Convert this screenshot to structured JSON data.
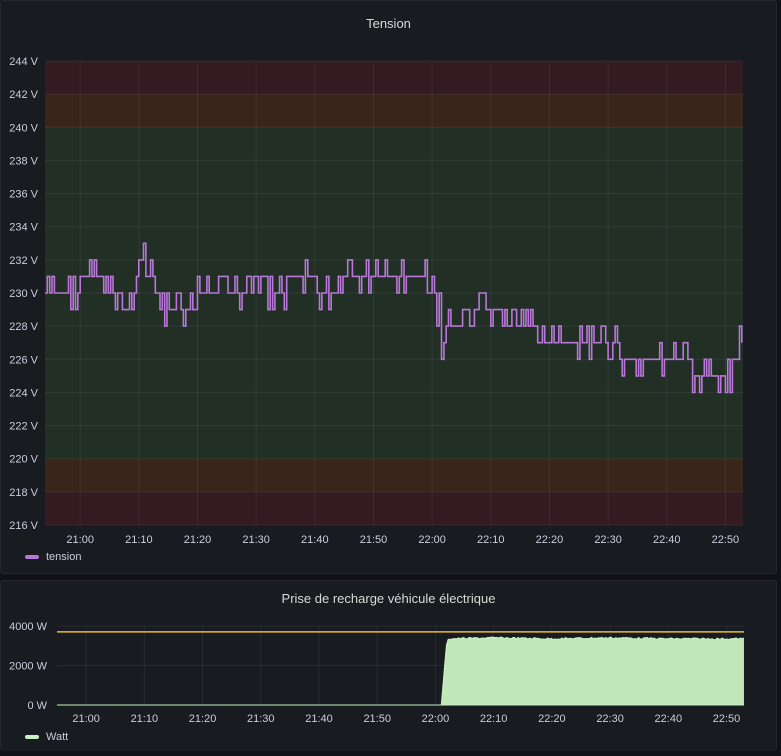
{
  "panels": {
    "tension": {
      "title": "Tension",
      "legend": "tension",
      "color": "#b877d9"
    },
    "charge": {
      "title": "Prise de recharge véhicule électrique",
      "legend": "Watt",
      "color": "#c8f2c2",
      "threshold_color": "#eab839"
    }
  },
  "chart_data": [
    {
      "type": "line",
      "title": "Tension",
      "ylabel": "",
      "unit": "V",
      "ylim": [
        216,
        244
      ],
      "yticks": [
        216,
        218,
        220,
        222,
        224,
        226,
        228,
        230,
        232,
        234,
        236,
        238,
        240,
        242,
        244
      ],
      "ytick_labels": [
        "216 V",
        "218 V",
        "220 V",
        "222 V",
        "224 V",
        "226 V",
        "228 V",
        "230 V",
        "232 V",
        "234 V",
        "236 V",
        "238 V",
        "240 V",
        "242 V",
        "244 V"
      ],
      "xlim": [
        "20:54",
        "22:53"
      ],
      "xticks": [
        "21:00",
        "21:10",
        "21:20",
        "21:30",
        "21:40",
        "21:50",
        "22:00",
        "22:10",
        "22:20",
        "22:30",
        "22:40",
        "22:50"
      ],
      "threshold_bands": [
        {
          "from": 242,
          "to": 244,
          "color": "red"
        },
        {
          "from": 240,
          "to": 242,
          "color": "orange"
        },
        {
          "from": 220,
          "to": 240,
          "color": "green"
        },
        {
          "from": 218,
          "to": 220,
          "color": "orange"
        },
        {
          "from": 216,
          "to": 218,
          "color": "red"
        }
      ],
      "series": [
        {
          "name": "tension",
          "color": "#b877d9",
          "x": [
            "20:54",
            "20:58",
            "21:02",
            "21:06",
            "21:08",
            "21:10",
            "21:12",
            "21:14",
            "21:18",
            "21:22",
            "21:26",
            "21:30",
            "21:34",
            "21:38",
            "21:42",
            "21:46",
            "21:50",
            "21:54",
            "21:58",
            "22:00",
            "22:02",
            "22:06",
            "22:10",
            "22:14",
            "22:18",
            "22:22",
            "22:26",
            "22:30",
            "22:34",
            "22:38",
            "22:42",
            "22:46",
            "22:50",
            "22:53"
          ],
          "values": [
            230,
            230,
            231,
            230,
            229,
            232,
            231,
            229,
            229,
            230,
            230,
            231,
            230,
            231,
            230,
            231,
            231,
            231,
            231,
            230,
            228,
            228,
            229,
            228,
            228,
            227,
            227,
            227,
            226,
            226,
            226,
            225,
            225,
            227
          ]
        }
      ]
    },
    {
      "type": "area",
      "title": "Prise de recharge véhicule électrique",
      "unit": "W",
      "ylim": [
        0,
        4000
      ],
      "yticks": [
        0,
        2000,
        4000
      ],
      "ytick_labels": [
        "0 W",
        "2000 W",
        "4000 W"
      ],
      "xlim": [
        "20:55",
        "22:53"
      ],
      "xticks": [
        "21:00",
        "21:10",
        "21:20",
        "21:30",
        "21:40",
        "21:50",
        "22:00",
        "22:10",
        "22:20",
        "22:30",
        "22:40",
        "22:50"
      ],
      "threshold": 3700,
      "series": [
        {
          "name": "Watt",
          "color": "#c8f2c2",
          "x": [
            "20:55",
            "22:01",
            "22:02",
            "22:10",
            "22:20",
            "22:30",
            "22:40",
            "22:50",
            "22:53"
          ],
          "values": [
            0,
            0,
            3400,
            3450,
            3400,
            3450,
            3400,
            3400,
            3400
          ]
        }
      ]
    }
  ]
}
